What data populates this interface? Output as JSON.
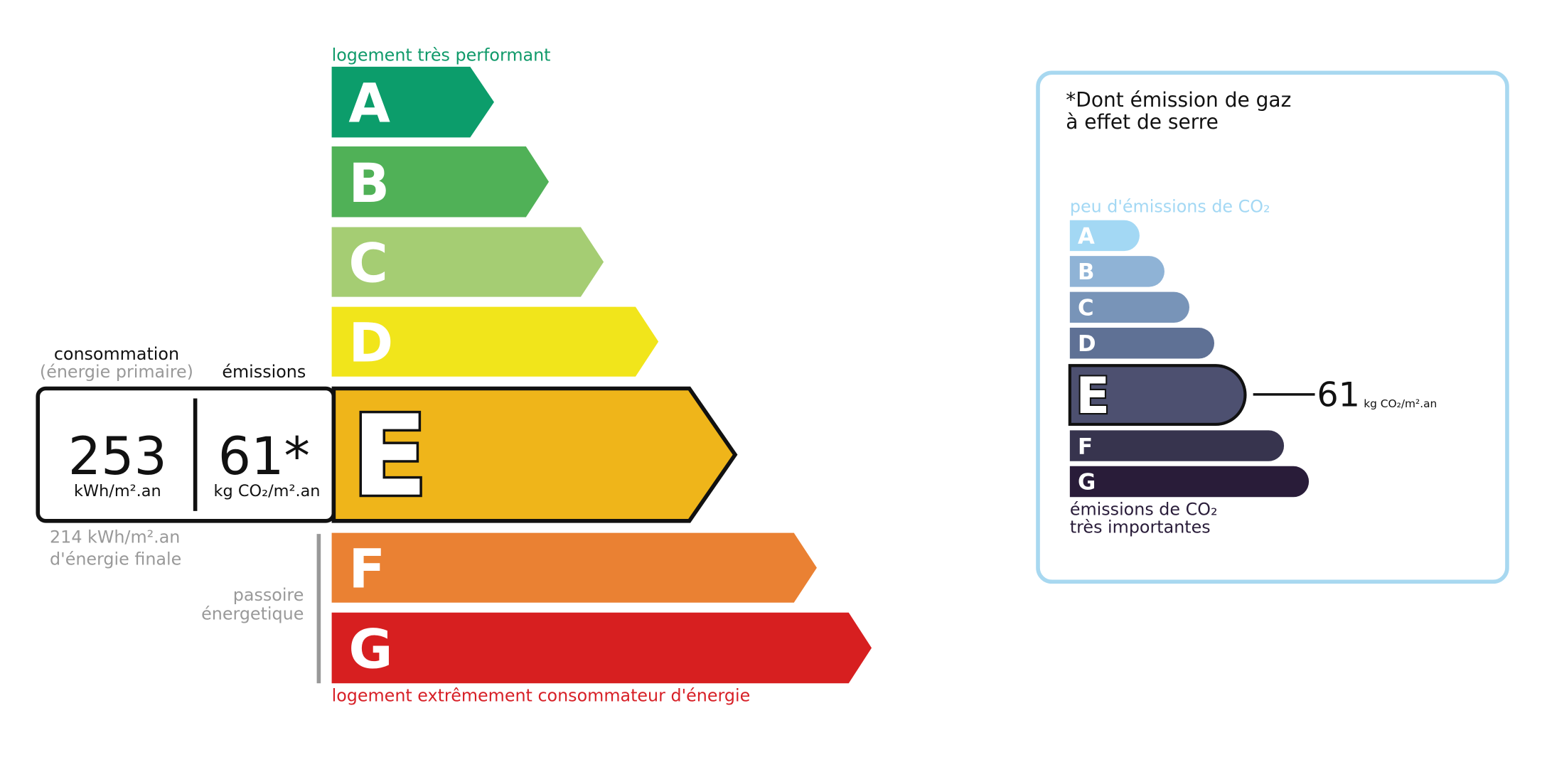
{
  "energy_label": {
    "top_label": "logement très performant",
    "bottom_label": "logement extrêmement consommateur d'énergie",
    "classes": [
      "A",
      "B",
      "C",
      "D",
      "E",
      "F",
      "G"
    ],
    "consumption": {
      "header": "consommation",
      "subheader": "(énergie primaire)",
      "value": "253",
      "unit": "kWh/m².an"
    },
    "emissions": {
      "header": "émissions",
      "value": "61*",
      "unit": "kg CO₂/m².an"
    },
    "final_energy": [
      "214 kWh/m².an",
      "d'énergie finale"
    ],
    "passoire": [
      "passoire",
      "énergetique"
    ]
  },
  "ges_panel": {
    "title": [
      "*Dont émission de gaz",
      "à effet de serre"
    ],
    "top_label": "peu d'émissions de CO₂",
    "bottom_label": [
      "émissions de CO₂",
      "très importantes"
    ],
    "classes": [
      "A",
      "B",
      "C",
      "D",
      "E",
      "F",
      "G"
    ],
    "value": "61",
    "unit": "kg CO₂/m².an"
  }
}
